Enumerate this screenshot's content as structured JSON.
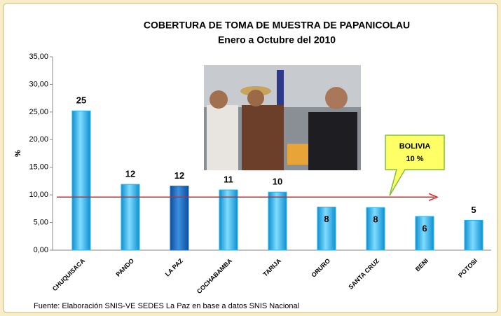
{
  "chart_data": {
    "type": "bar",
    "title": "COBERTURA DE TOMA DE MUESTRA DE PAPANICOLAU",
    "subtitle": "Enero a Octubre del 2010",
    "y_label": "%",
    "categories": [
      "CHUQUISACA",
      "PANDO",
      "LA PAZ",
      "COCHABAMBA",
      "TARIJA",
      "ORURO",
      "SANTA CRUZ",
      "BENI",
      "POTOSI"
    ],
    "values": [
      25.2,
      11.9,
      11.6,
      10.9,
      10.5,
      7.8,
      7.7,
      6.1,
      5.4
    ],
    "value_labels": [
      "25",
      "12",
      "12",
      "11",
      "10",
      "8",
      "8",
      "6",
      "5"
    ],
    "value_label_position": [
      "above",
      "above",
      "above",
      "above",
      "above",
      "inside",
      "inside",
      "inside",
      "above"
    ],
    "colors": [
      "#22b4ee",
      "#22b4ee",
      "#1b6fc4",
      "#22b4ee",
      "#22b4ee",
      "#22b4ee",
      "#22b4ee",
      "#22b4ee",
      "#22b4ee"
    ],
    "ylim": [
      0,
      35
    ],
    "yticks": [
      {
        "value": 0,
        "label": "0,00"
      },
      {
        "value": 5,
        "label": "5,00"
      },
      {
        "value": 10,
        "label": "10,00"
      },
      {
        "value": 15,
        "label": "15,00"
      },
      {
        "value": 20,
        "label": "20,00"
      },
      {
        "value": 25,
        "label": "25,00"
      },
      {
        "value": 30,
        "label": "30,00"
      },
      {
        "value": 35,
        "label": "35,00"
      }
    ],
    "reference_line": {
      "value": 9.6,
      "color": "#e02020",
      "title": "BOLIVIA",
      "label": "10 %"
    },
    "source": "Fuente: Elaboración SNIS-VE SEDES La Paz en base a datos SNIS Nacional"
  }
}
